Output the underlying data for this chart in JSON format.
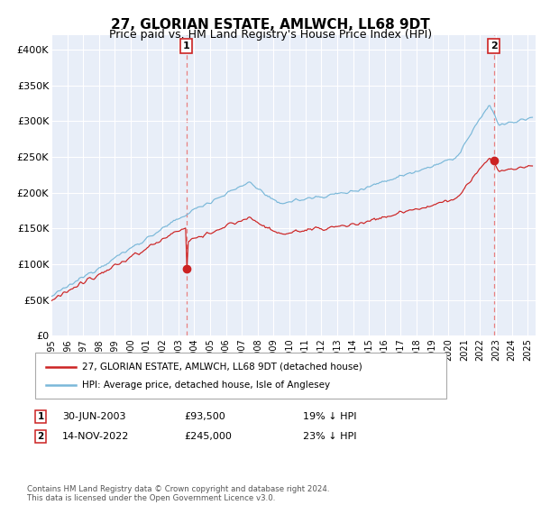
{
  "title": "27, GLORIAN ESTATE, AMLWCH, LL68 9DT",
  "subtitle": "Price paid vs. HM Land Registry's House Price Index (HPI)",
  "xlim_start": 1995.0,
  "xlim_end": 2025.5,
  "ylim": [
    0,
    420000
  ],
  "yticks": [
    0,
    50000,
    100000,
    150000,
    200000,
    250000,
    300000,
    350000,
    400000
  ],
  "ytick_labels": [
    "£0",
    "£50K",
    "£100K",
    "£150K",
    "£200K",
    "£250K",
    "£300K",
    "£350K",
    "£400K"
  ],
  "hpi_color": "#7ab8d9",
  "price_color": "#cc2222",
  "marker1_date": 2003.5,
  "marker1_price": 93500,
  "marker1_label": "1",
  "marker2_date": 2022.87,
  "marker2_price": 245000,
  "marker2_label": "2",
  "marker1_row": "30-JUN-2003          £93,500          19% ↓ HPI",
  "marker2_row": "14-NOV-2022          £245,000          23% ↓ HPI",
  "vline_color": "#e88080",
  "legend_line1": "27, GLORIAN ESTATE, AMLWCH, LL68 9DT (detached house)",
  "legend_line2": "HPI: Average price, detached house, Isle of Anglesey",
  "footnote": "Contains HM Land Registry data © Crown copyright and database right 2024.\nThis data is licensed under the Open Government Licence v3.0.",
  "bg_color": "#e8eef8",
  "grid_color": "#ffffff",
  "title_fontsize": 11,
  "subtitle_fontsize": 9
}
